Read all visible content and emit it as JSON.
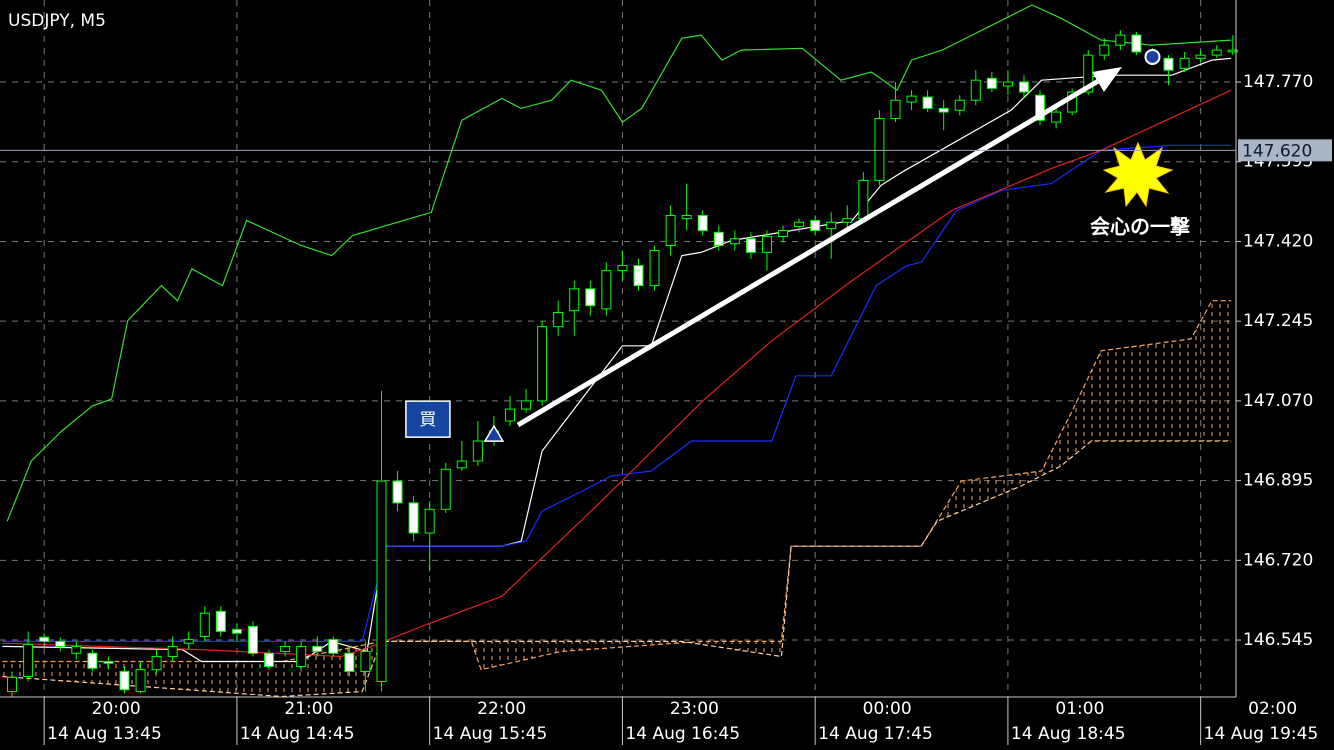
{
  "chart_data": {
    "type": "candlestick",
    "title": "USDJPY, M5",
    "xlim": [
      -0.75,
      76.2
    ],
    "ylim": [
      146.42,
      147.95
    ],
    "grid": true,
    "yticks": [
      {
        "value": 146.545,
        "label": "146.545"
      },
      {
        "value": 146.72,
        "label": "146.720"
      },
      {
        "value": 146.895,
        "label": "146.895"
      },
      {
        "value": 147.07,
        "label": "147.070"
      },
      {
        "value": 147.245,
        "label": "147.245"
      },
      {
        "value": 147.42,
        "label": "147.420"
      },
      {
        "value": 147.595,
        "label": "147.595"
      },
      {
        "value": 147.77,
        "label": "147.770"
      }
    ],
    "xticks": [
      {
        "value": 2,
        "label": "14 Aug 13:45"
      },
      {
        "value": 14,
        "label": "14 Aug 14:45"
      },
      {
        "value": 26,
        "label": "14 Aug 15:45"
      },
      {
        "value": 38,
        "label": "14 Aug 16:45"
      },
      {
        "value": 50,
        "label": "14 Aug 17:45"
      },
      {
        "value": 62,
        "label": "14 Aug 18:45"
      },
      {
        "value": 74,
        "label": "14 Aug 19:45"
      }
    ],
    "xticks_top": [
      "20:00",
      "21:00",
      "22:00",
      "23:00",
      "00:00",
      "01:00",
      "02:00"
    ],
    "current_price": {
      "value": 147.62,
      "label": "147.620"
    },
    "candle_outline": "#00ff00",
    "up_color": "#000000",
    "down_color": "#ffffff",
    "open": [
      146.432,
      146.465,
      146.551,
      146.542,
      146.516,
      146.516,
      146.498,
      146.476,
      146.432,
      146.48,
      146.509,
      146.538,
      146.553,
      146.608,
      146.568,
      146.575,
      146.516,
      146.52,
      146.487,
      146.531,
      146.546,
      146.516,
      146.476,
      146.454,
      146.894,
      146.846,
      146.78,
      146.832,
      146.923,
      146.938,
      146.986,
      147.026,
      147.052,
      147.07,
      147.233,
      147.268,
      147.316,
      147.272,
      147.356,
      147.367,
      147.323,
      147.411,
      147.47,
      147.477,
      147.44,
      147.415,
      147.426,
      147.396,
      147.431,
      147.453,
      147.466,
      147.448,
      147.462,
      147.47,
      147.554,
      147.69,
      147.726,
      147.737,
      147.712,
      147.708,
      147.73,
      147.778,
      147.761,
      147.77,
      147.741,
      147.682,
      147.704,
      147.748,
      147.829,
      147.851,
      147.873,
      147.827,
      147.822,
      147.8,
      147.822,
      147.829,
      147.836
    ],
    "high": [
      146.476,
      146.564,
      146.56,
      146.551,
      146.542,
      146.524,
      146.509,
      146.487,
      146.498,
      146.524,
      146.553,
      146.564,
      146.619,
      146.619,
      146.582,
      146.586,
      146.524,
      146.542,
      146.542,
      146.553,
      146.553,
      146.531,
      146.542,
      147.092,
      146.916,
      146.861,
      146.85,
      146.934,
      146.982,
      147.026,
      147.037,
      147.081,
      147.096,
      147.246,
      147.29,
      147.334,
      147.334,
      147.374,
      147.4,
      147.382,
      147.411,
      147.499,
      147.547,
      147.488,
      147.455,
      147.444,
      147.44,
      147.444,
      147.455,
      147.47,
      147.477,
      147.484,
      147.499,
      147.572,
      147.708,
      147.77,
      147.752,
      147.752,
      147.73,
      147.741,
      147.796,
      147.792,
      147.796,
      147.785,
      147.752,
      147.719,
      147.756,
      147.84,
      147.866,
      147.884,
      147.88,
      147.844,
      147.829,
      147.836,
      147.84,
      147.851,
      147.873
    ],
    "low": [
      146.421,
      146.454,
      146.531,
      146.52,
      146.502,
      146.476,
      146.48,
      146.428,
      146.428,
      146.472,
      146.498,
      146.524,
      146.542,
      146.553,
      146.542,
      146.509,
      146.48,
      146.509,
      146.476,
      146.509,
      146.509,
      146.465,
      146.432,
      146.432,
      146.828,
      146.762,
      146.696,
      146.824,
      146.916,
      146.927,
      146.971,
      147.015,
      147.044,
      147.059,
      147.213,
      147.213,
      147.257,
      147.257,
      147.334,
      147.312,
      147.312,
      147.389,
      147.444,
      147.433,
      147.4,
      147.4,
      147.382,
      147.356,
      147.418,
      147.44,
      147.433,
      147.382,
      147.448,
      147.462,
      147.543,
      147.682,
      147.708,
      147.704,
      147.664,
      147.697,
      147.719,
      147.748,
      147.741,
      147.734,
      147.675,
      147.668,
      147.697,
      147.741,
      147.818,
      147.84,
      147.829,
      147.818,
      147.763,
      147.792,
      147.813,
      147.822,
      147.829
    ],
    "close": [
      146.463,
      146.535,
      146.542,
      146.531,
      146.531,
      146.483,
      146.494,
      146.436,
      146.48,
      146.509,
      146.531,
      146.546,
      146.604,
      146.564,
      146.56,
      146.516,
      146.487,
      146.531,
      146.531,
      146.52,
      146.516,
      146.476,
      146.52,
      146.894,
      146.846,
      146.78,
      146.832,
      146.92,
      146.938,
      146.982,
      147.004,
      147.052,
      147.07,
      147.233,
      147.264,
      147.316,
      147.279,
      147.356,
      147.367,
      147.323,
      147.4,
      147.477,
      147.477,
      147.444,
      147.411,
      147.426,
      147.396,
      147.431,
      147.444,
      147.462,
      147.444,
      147.462,
      147.47,
      147.554,
      147.69,
      147.73,
      147.739,
      147.712,
      147.704,
      147.73,
      147.774,
      147.756,
      147.77,
      147.748,
      147.686,
      147.704,
      147.748,
      147.829,
      147.851,
      147.873,
      147.836,
      147.831,
      147.796,
      147.822,
      147.829,
      147.84,
      147.84
    ],
    "lines": [
      {
        "color": "#33dd33",
        "x": [
          -0.3,
          1.2,
          3.1,
          5.0,
          6.2,
          7.2,
          9.3,
          10.3,
          11.2,
          13.1,
          14.6,
          18.0,
          19.9,
          21.2,
          26.1,
          28.0,
          30.5,
          31.7,
          33.6,
          34.8,
          36.7,
          38.0,
          39.2,
          41.7,
          42.9,
          44.2,
          45.4,
          49.2,
          51.6,
          53.5,
          55.1,
          56.0,
          57.9,
          63.5,
          65.3,
          67.8,
          70.9,
          75.9
        ],
        "values": [
          146.806,
          146.938,
          147.004,
          147.059,
          147.074,
          147.246,
          147.323,
          147.29,
          147.36,
          147.323,
          147.466,
          147.411,
          147.389,
          147.433,
          147.484,
          147.686,
          147.734,
          147.712,
          147.73,
          147.774,
          147.752,
          147.682,
          147.712,
          147.866,
          147.873,
          147.818,
          147.84,
          147.844,
          147.774,
          147.792,
          147.752,
          147.818,
          147.84,
          147.939,
          147.91,
          147.862,
          147.851,
          147.862
        ]
      },
      {
        "color": "#ffffff",
        "x": [
          -0.6,
          10.6,
          11.8,
          18.0,
          19.9,
          22.1,
          23.0,
          23.3,
          30.5,
          31.7,
          33.0,
          38.0,
          39.8,
          41.7,
          42.9,
          44.8,
          52.3,
          54.1,
          55.4,
          62.2,
          64.1,
          68.4,
          72.2,
          74.7,
          75.9
        ],
        "values": [
          146.531,
          146.524,
          146.498,
          146.498,
          146.542,
          146.52,
          146.718,
          146.751,
          146.751,
          146.762,
          146.96,
          147.191,
          147.191,
          147.389,
          147.396,
          147.422,
          147.466,
          147.543,
          147.572,
          147.708,
          147.774,
          147.785,
          147.785,
          147.818,
          147.822
        ]
      },
      {
        "color": "#1a2cff",
        "x": [
          -0.6,
          21.8,
          22.9,
          23.0,
          30.5,
          32.0,
          33.0,
          35.5,
          37.3,
          39.8,
          42.3,
          47.3,
          48.8,
          51.0,
          53.8,
          55.7,
          56.6,
          58.8,
          61.6,
          64.7,
          67.8,
          72.2,
          75.9
        ],
        "values": [
          146.542,
          146.542,
          146.696,
          146.751,
          146.751,
          146.762,
          146.828,
          146.872,
          146.905,
          146.916,
          146.982,
          146.982,
          147.125,
          147.125,
          147.323,
          147.367,
          147.374,
          147.488,
          147.532,
          147.547,
          147.62,
          147.631,
          147.631
        ]
      },
      {
        "color": "#dd2222",
        "x": [
          -0.6,
          11.8,
          20.5,
          22.4,
          25.5,
          30.5,
          36.7,
          43.0,
          47.3,
          52.3,
          58.5,
          64.7,
          67.8,
          75.9
        ],
        "values": [
          146.538,
          146.524,
          146.509,
          146.531,
          146.575,
          146.641,
          146.85,
          147.07,
          147.202,
          147.334,
          147.488,
          147.58,
          147.62,
          147.752
        ]
      }
    ],
    "cloud": {
      "span_a": {
        "color": "#f4a460",
        "x": [
          -0.6,
          16.8,
          23.0,
          28.6,
          29.2,
          34.2,
          42.9,
          47.9,
          48.5,
          56.6,
          59.1,
          64.1,
          66.0,
          67.8,
          73.4,
          74.7,
          75.9
        ],
        "values": [
          146.498,
          146.498,
          146.542,
          146.542,
          146.48,
          146.52,
          146.542,
          146.542,
          146.751,
          146.751,
          146.894,
          146.916,
          147.048,
          147.18,
          147.206,
          147.29,
          147.29
        ]
      },
      "span_b": {
        "color": "#ffcfa0",
        "x": [
          -0.6,
          16.8,
          21.8,
          23.0,
          29.2,
          41.7,
          47.9,
          48.5,
          56.6,
          57.6,
          59.1,
          62.8,
          65.3,
          67.2,
          75.9
        ],
        "values": [
          146.465,
          146.421,
          146.432,
          146.542,
          146.542,
          146.542,
          146.509,
          146.751,
          146.751,
          146.806,
          146.828,
          146.883,
          146.927,
          146.982,
          146.982
        ]
      }
    },
    "buy_marker": {
      "x": 30,
      "price": 146.997,
      "label": "買"
    },
    "exit_marker": {
      "x": 71,
      "price": 147.825
    },
    "annotation": "会心の一撃"
  }
}
